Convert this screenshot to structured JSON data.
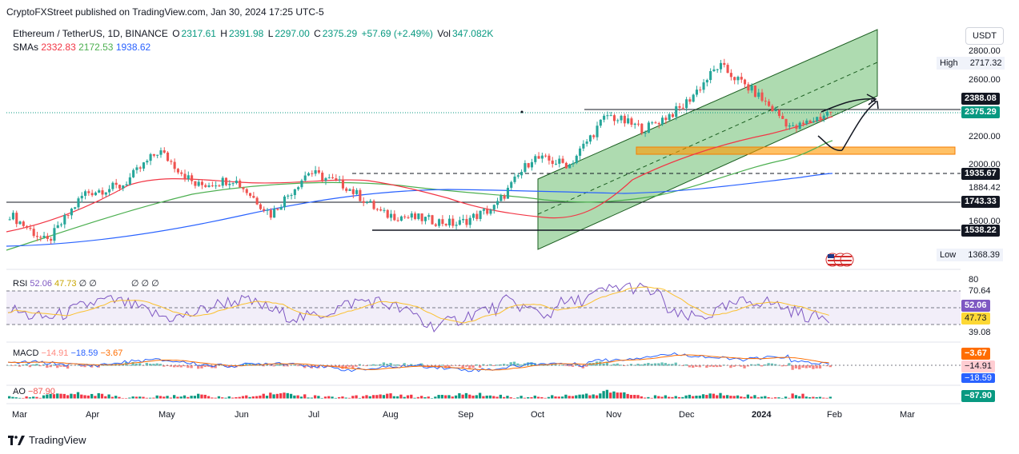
{
  "header": {
    "publisher": "CryptoFXStreet published on TradingView.com, Jan 30, 2024 17:25 UTC-5"
  },
  "symbol": {
    "name": "Ethereum / TetherUS, 1D, BINANCE",
    "o_label": "O",
    "o": "2317.61",
    "h_label": "H",
    "h": "2391.98",
    "l_label": "L",
    "l": "2297.00",
    "c_label": "C",
    "c": "2375.29",
    "change": "+57.69 (+2.49%)",
    "vol_label": "Vol",
    "vol": "347.082K"
  },
  "sma": {
    "label": "SMAs",
    "v1": "2332.83",
    "v2": "2172.53",
    "v3": "1938.62",
    "c1": "#f23645",
    "c2": "#4caf50",
    "c3": "#2962ff"
  },
  "price_axis": {
    "currency": "USDT",
    "ticks": [
      "2800.00",
      "2600.00",
      "2200.00",
      "2000.00",
      "1884.42",
      "1600.00"
    ],
    "high_label": "High",
    "high": "2717.32",
    "low_label": "Low",
    "low": "1368.39",
    "tag_resistance": "2388.08",
    "tag_price": "2375.29",
    "tag_1935": "1935.67",
    "tag_1743": "1743.33",
    "tag_1538": "1538.22"
  },
  "rsi": {
    "label": "RSI",
    "v1": "52.06",
    "v2": "47.73",
    "extra": "∅ ∅",
    "extra2": "∅ ∅ ∅",
    "ticks": [
      "80",
      "70.64",
      "39.08"
    ],
    "tag1": "52.06",
    "tag2": "47.73"
  },
  "macd": {
    "label": "MACD",
    "v1": "−14.91",
    "v2": "−18.59",
    "v3": "−3.67",
    "tag1": "−3.67",
    "tag2": "−14.91",
    "tag3": "−18.59"
  },
  "ao": {
    "label": "AO",
    "v": "−87.90",
    "tag": "−87.90"
  },
  "x_axis": [
    "Mar",
    "Apr",
    "May",
    "Jun",
    "Jul",
    "Aug",
    "Sep",
    "Oct",
    "Nov",
    "Dec",
    "2024",
    "Feb",
    "Mar"
  ],
  "footer": {
    "brand": "TradingView"
  },
  "colors": {
    "up": "#26a69a",
    "down": "#ef5350",
    "channel": "#4caf50",
    "support": "#ff9800"
  },
  "chart_data": {
    "type": "candlestick",
    "title": "Ethereum / TetherUS, 1D, BINANCE",
    "ylim": [
      1300,
      2950
    ],
    "x_ticks": [
      "Mar",
      "Apr",
      "May",
      "Jun",
      "Jul",
      "Aug",
      "Sep",
      "Oct",
      "Nov",
      "Dec",
      "2024",
      "Feb",
      "Mar"
    ],
    "price_path": [
      {
        "m": "Mar",
        "v": 1650
      },
      {
        "m": "Mar",
        "v": 1450
      },
      {
        "m": "Mar",
        "v": 1800
      },
      {
        "m": "Apr",
        "v": 1850
      },
      {
        "m": "Apr",
        "v": 2100
      },
      {
        "m": "May",
        "v": 1850
      },
      {
        "m": "Jun",
        "v": 1900
      },
      {
        "m": "Jun",
        "v": 1650
      },
      {
        "m": "Jul",
        "v": 1950
      },
      {
        "m": "Aug",
        "v": 1850
      },
      {
        "m": "Aug",
        "v": 1650
      },
      {
        "m": "Sep",
        "v": 1620
      },
      {
        "m": "Oct",
        "v": 1580
      },
      {
        "m": "Oct",
        "v": 1700
      },
      {
        "m": "Nov",
        "v": 2050
      },
      {
        "m": "Nov",
        "v": 2000
      },
      {
        "m": "Dec",
        "v": 2350
      },
      {
        "m": "Dec",
        "v": 2250
      },
      {
        "m": "2024",
        "v": 2400
      },
      {
        "m": "2024",
        "v": 2700
      },
      {
        "m": "2024",
        "v": 2500
      },
      {
        "m": "2024",
        "v": 2250
      },
      {
        "m": "Feb",
        "v": 2375
      }
    ],
    "levels": [
      2388.08,
      1935.67,
      1743.33,
      1538.22
    ],
    "support_zone": [
      2080,
      2120
    ],
    "high": 2717.32,
    "low": 1368.39
  }
}
